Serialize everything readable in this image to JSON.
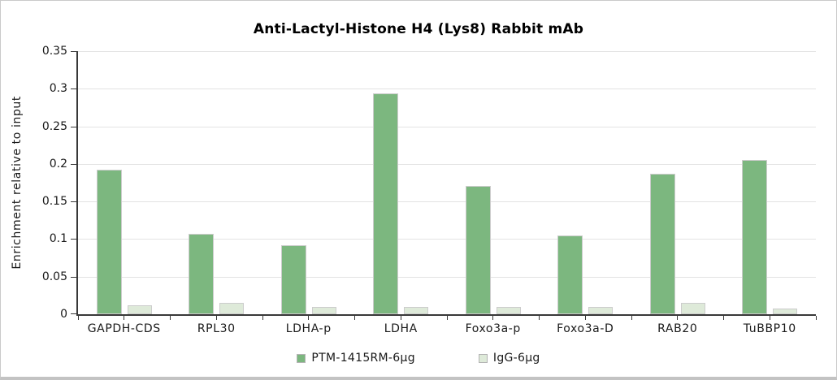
{
  "panel": {
    "background": "#ffffff",
    "border_color": "#cacaca"
  },
  "chart_data": {
    "type": "bar",
    "title": "Anti-Lactyl-Histone H4 (Lys8) Rabbit mAb",
    "xlabel": "",
    "ylabel": "Enrichment relative to input",
    "categories": [
      "GAPDH-CDS",
      "RPL30",
      "LDHA-p",
      "LDHA",
      "Foxo3a-p",
      "Foxo3a-D",
      "RAB20",
      "TuBBP10"
    ],
    "series": [
      {
        "name": "PTM-1415RM-6µg",
        "color": "#7cb77f",
        "values": [
          0.192,
          0.107,
          0.092,
          0.294,
          0.171,
          0.105,
          0.187,
          0.205
        ]
      },
      {
        "name": "IgG-6µg",
        "color": "#deead9",
        "values": [
          0.012,
          0.015,
          0.01,
          0.01,
          0.01,
          0.01,
          0.015,
          0.008
        ]
      }
    ],
    "ylim": [
      0,
      0.35
    ],
    "ytick_step": 0.05,
    "yticks": [
      "0",
      "0.05",
      "0.1",
      "0.15",
      "0.2",
      "0.25",
      "0.3",
      "0.35"
    ],
    "grid": true,
    "legend_position": "bottom",
    "colors": {
      "gridline": "#e3e3e3",
      "axis": "#383838",
      "text": "#1a1a1a",
      "bar_border": "#cccccc"
    }
  }
}
